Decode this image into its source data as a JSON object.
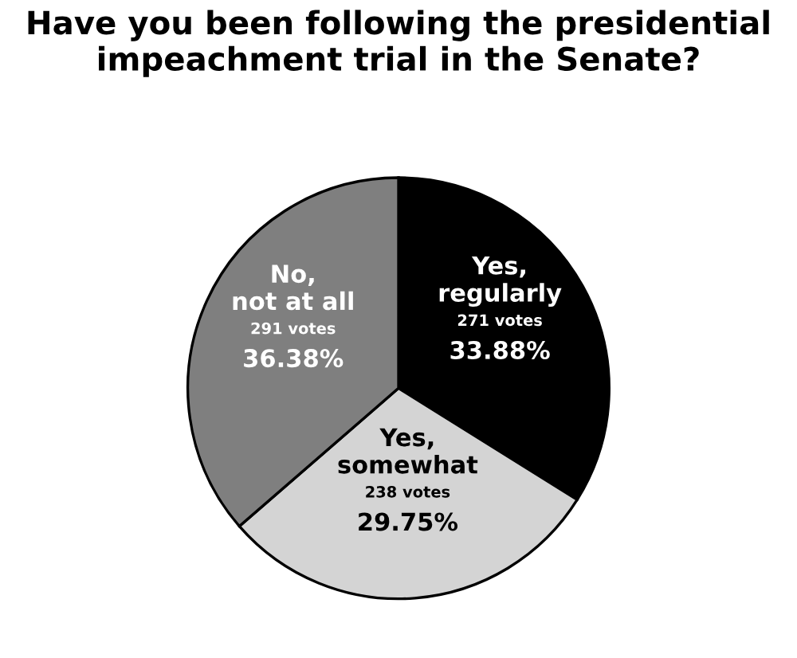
{
  "chart_data": {
    "type": "pie",
    "title": "Have you been following the presidential impeachment trial in the Senate?",
    "categories": [
      "Yes,\nregularly",
      "Yes,\nsomewhat",
      "No,\nnot at all"
    ],
    "values": [
      33.88,
      29.75,
      36.38
    ],
    "value_labels": [
      "271 votes\n33.88%",
      "238 votes\n29.75%",
      "291 votes\n36.38%"
    ],
    "colors": [
      "#000000",
      "#d4d4d4",
      "#7f7f7f"
    ]
  }
}
